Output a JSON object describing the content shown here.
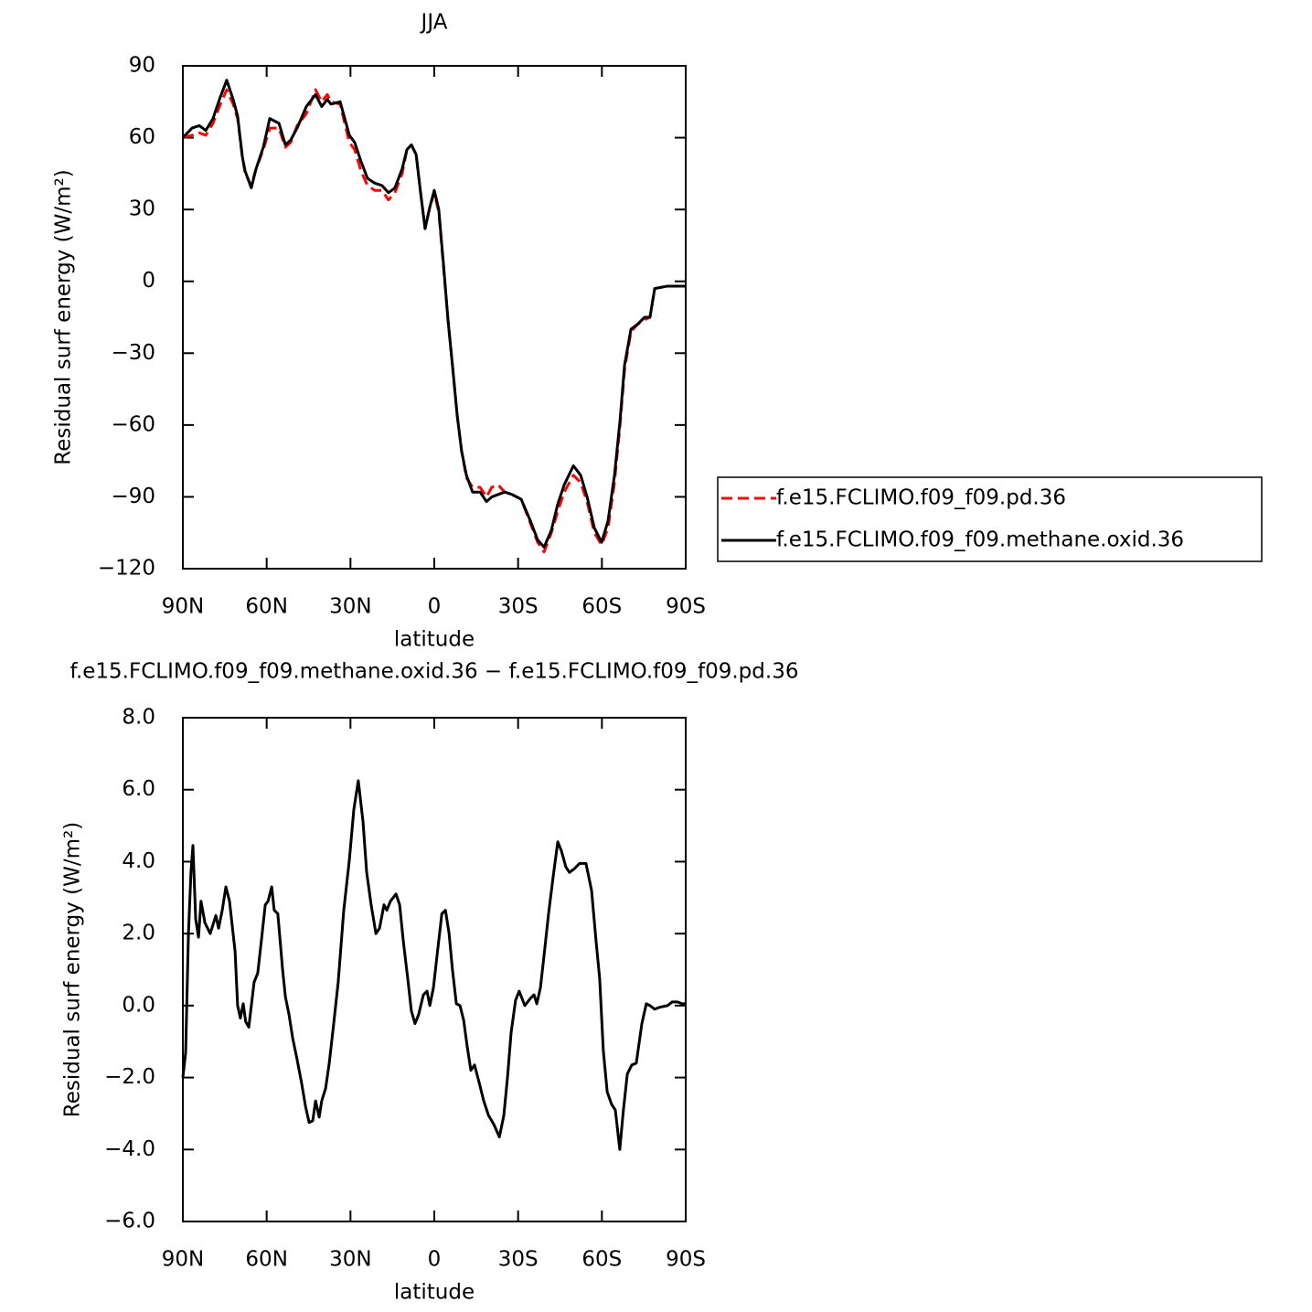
{
  "chart_data": [
    {
      "type": "line",
      "title": "JJA",
      "xlabel": "latitude",
      "ylabel": "Residual surf energy (W/m²)",
      "xlim": [
        90,
        -90
      ],
      "ylim": [
        -120,
        90
      ],
      "xticks": [
        {
          "value": 90,
          "label": "90N"
        },
        {
          "value": 60,
          "label": "60N"
        },
        {
          "value": 30,
          "label": "30N"
        },
        0,
        {
          "value": -30,
          "label": "30S"
        },
        {
          "value": -60,
          "label": "60S"
        },
        {
          "value": -90,
          "label": "90S"
        }
      ],
      "yticks": [
        {
          "value": -120,
          "label": "−120"
        },
        {
          "value": -90,
          "label": "−90"
        },
        {
          "value": -60,
          "label": "−60"
        },
        {
          "value": -30,
          "label": "−30"
        },
        0,
        30,
        60,
        90
      ],
      "legend": "right",
      "x": [
        90,
        86.7,
        84.1,
        81.8,
        79.2,
        76.9,
        74.3,
        72,
        70.4,
        68.7,
        67.7,
        65.5,
        63.8,
        61.2,
        58.9,
        55.6,
        53.3,
        51.4,
        49.1,
        45.8,
        42.5,
        40.3,
        38.3,
        37,
        33.7,
        30.4,
        28.5,
        26.2,
        23.9,
        21.3,
        18.7,
        16.4,
        14.1,
        11.5,
        9.8,
        8.2,
        6.5,
        4.9,
        3.3,
        1.6,
        0,
        -1.6,
        -3.3,
        -4.9,
        -6.5,
        -8.2,
        -9.8,
        -11.5,
        -13.7,
        -16.4,
        -18.7,
        -20.6,
        -22.9,
        -25.2,
        -27.8,
        -31.1,
        -34.4,
        -37,
        -39.3,
        -41.9,
        -44.2,
        -46.5,
        -49.8,
        -52.4,
        -54.7,
        -57.3,
        -59.9,
        -62.2,
        -64.5,
        -66.5,
        -68.1,
        -70.4,
        -72.7,
        -75.3,
        -77.2,
        -78.9,
        -83.5,
        -90
      ],
      "series": [
        {
          "name": "f.e15.FCLIMO.f09_f09.pd.36",
          "color": "#ff0000",
          "style": "dashed",
          "values": [
            60,
            61,
            62,
            61,
            66,
            73,
            80,
            74,
            68,
            52,
            45,
            40,
            47,
            55,
            64,
            64,
            56,
            58,
            65,
            70,
            80,
            75,
            78,
            75,
            74,
            58,
            55,
            46,
            40,
            38,
            38,
            34,
            37,
            45,
            55,
            57,
            53,
            37,
            22,
            31,
            37,
            29,
            6,
            -16,
            -35,
            -56,
            -71,
            -82,
            -86,
            -86,
            -90,
            -86,
            -85,
            -88,
            -89,
            -91,
            -101,
            -109,
            -113,
            -105,
            -96,
            -88,
            -81,
            -84,
            -92,
            -105,
            -110,
            -103,
            -84,
            -60,
            -37,
            -21,
            -18,
            -16,
            -15,
            -3,
            -2,
            -2
          ]
        },
        {
          "name": "f.e15.FCLIMO.f09_f09.methane.oxid.36",
          "color": "#000000",
          "style": "solid",
          "values": [
            60,
            64,
            65,
            63,
            68,
            76,
            84,
            76,
            69,
            52,
            46,
            39,
            47,
            56,
            68,
            66,
            57,
            59,
            64,
            73,
            78,
            73,
            76,
            74,
            75,
            61,
            58,
            50,
            43,
            41,
            40,
            37,
            39,
            47,
            55,
            57,
            53,
            37,
            22,
            31,
            38,
            30,
            7,
            -16,
            -35,
            -56,
            -71,
            -81,
            -88,
            -88,
            -92,
            -90,
            -89,
            -88,
            -89,
            -91,
            -100,
            -108,
            -111,
            -104,
            -93,
            -85,
            -77,
            -81,
            -90,
            -103,
            -109,
            -100,
            -81,
            -58,
            -35,
            -20,
            -18,
            -15,
            -15,
            -3,
            -2,
            -2
          ]
        }
      ]
    },
    {
      "type": "line",
      "title": "f.e15.FCLIMO.f09_f09.methane.oxid.36 − f.e15.FCLIMO.f09_f09.pd.36",
      "xlabel": "latitude",
      "ylabel": "Residual surf energy (W/m²)",
      "xlim": [
        90,
        -90
      ],
      "ylim": [
        -6,
        8
      ],
      "xticks": [
        {
          "value": 90,
          "label": "90N"
        },
        {
          "value": 60,
          "label": "60N"
        },
        {
          "value": 30,
          "label": "30N"
        },
        0,
        {
          "value": -30,
          "label": "30S"
        },
        {
          "value": -60,
          "label": "60S"
        },
        {
          "value": -90,
          "label": "90S"
        }
      ],
      "yticks": [
        {
          "value": -6,
          "label": "−6.0"
        },
        {
          "value": -4,
          "label": "−4.0"
        },
        {
          "value": -2,
          "label": "−2.0"
        },
        {
          "value": 0,
          "label": "0.0"
        },
        {
          "value": 2,
          "label": "2.0"
        },
        {
          "value": 4,
          "label": "4.0"
        },
        {
          "value": 6,
          "label": "6.0"
        },
        {
          "value": 8,
          "label": "8.0"
        }
      ],
      "color": "#000000",
      "x": [
        90,
        89.0,
        88.0,
        87.1,
        86.4,
        85.4,
        84.4,
        83.5,
        82.1,
        80.2,
        78.2,
        77.2,
        75.9,
        74.6,
        73.3,
        71.3,
        70.4,
        69.4,
        68.4,
        67.5,
        66.4,
        64.5,
        63.2,
        61.9,
        60.5,
        59.5,
        58.2,
        57.3,
        56.0,
        54.3,
        53.3,
        52.0,
        50.7,
        49.1,
        47.5,
        46.1,
        44.8,
        43.5,
        42.5,
        41.9,
        41.2,
        40.3,
        38.9,
        37.6,
        36.0,
        34.4,
        32.4,
        30.4,
        28.8,
        27.2,
        25.5,
        24.2,
        22.6,
        20.9,
        19.6,
        18.0,
        17.0,
        15.7,
        13.7,
        12.4,
        11.1,
        9.5,
        8.2,
        6.9,
        5.6,
        3.9,
        2.6,
        1.6,
        0.3,
        -1.0,
        -2.7,
        -4.0,
        -5.3,
        -6.5,
        -7.9,
        -9.2,
        -10.5,
        -11.8,
        -13.1,
        -14.4,
        -16.1,
        -17.7,
        -19.4,
        -21.3,
        -23.3,
        -24.9,
        -26.2,
        -27.5,
        -29.1,
        -30.4,
        -32.4,
        -34.4,
        -35.7,
        -36.7,
        -38.0,
        -39.3,
        -40.9,
        -42.5,
        -44.2,
        -45.5,
        -47.1,
        -48.4,
        -50.1,
        -52.0,
        -54.3,
        -56.3,
        -57.9,
        -59.2,
        -60.5,
        -61.9,
        -63.5,
        -64.8,
        -66.4,
        -67.7,
        -69.1,
        -70.7,
        -72.3,
        -74.3,
        -75.9,
        -77.2,
        -78.9,
        -80.5,
        -83.5,
        -85.1,
        -87.1,
        -88.7,
        -90
      ],
      "values": [
        -2.0,
        -1.3,
        2.0,
        3.7,
        4.45,
        2.4,
        1.9,
        2.9,
        2.3,
        2.0,
        2.5,
        2.15,
        2.65,
        3.3,
        2.9,
        1.5,
        0.0,
        -0.35,
        0.05,
        -0.45,
        -0.6,
        0.65,
        0.9,
        1.8,
        2.8,
        2.9,
        3.3,
        2.65,
        2.55,
        1.0,
        0.25,
        -0.25,
        -0.9,
        -1.5,
        -2.15,
        -2.8,
        -3.25,
        -3.2,
        -2.65,
        -2.85,
        -3.1,
        -2.65,
        -2.3,
        -1.6,
        -0.5,
        0.65,
        2.65,
        4.05,
        5.45,
        6.25,
        5.1,
        3.7,
        2.8,
        2.0,
        2.15,
        2.8,
        2.65,
        2.9,
        3.1,
        2.8,
        1.8,
        0.75,
        -0.15,
        -0.5,
        -0.25,
        0.3,
        0.4,
        0.0,
        0.5,
        1.4,
        2.55,
        2.65,
        2.0,
        1.0,
        0.05,
        0.0,
        -0.4,
        -1.15,
        -1.8,
        -1.65,
        -2.15,
        -2.65,
        -3.05,
        -3.3,
        -3.65,
        -3.05,
        -2.0,
        -0.75,
        0.15,
        0.4,
        0.0,
        0.2,
        0.3,
        0.05,
        0.5,
        1.4,
        2.55,
        3.55,
        4.55,
        4.3,
        3.85,
        3.7,
        3.8,
        3.95,
        3.95,
        3.2,
        1.8,
        0.75,
        -1.25,
        -2.4,
        -2.75,
        -2.9,
        -4.0,
        -2.9,
        -1.9,
        -1.65,
        -1.6,
        -0.5,
        0.05,
        0.0,
        -0.1,
        -0.05,
        0.0,
        0.1,
        0.1,
        0.05,
        0.05
      ]
    }
  ]
}
